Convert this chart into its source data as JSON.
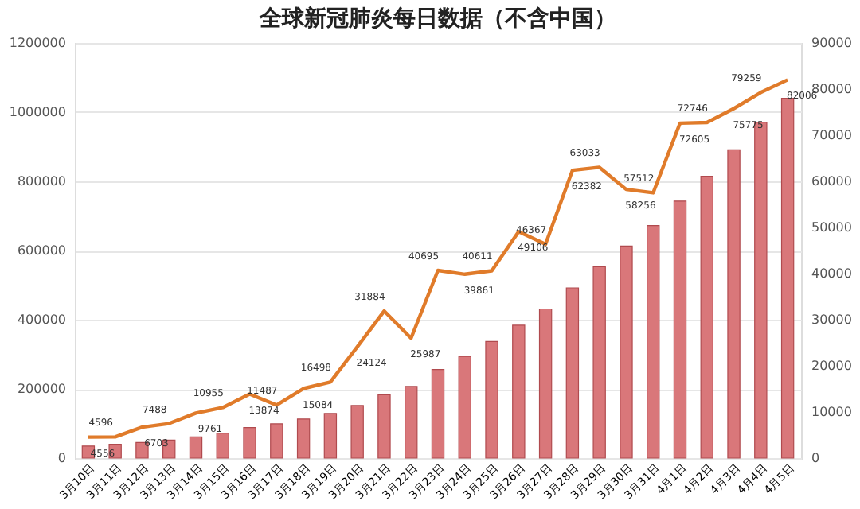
{
  "chart_data": {
    "type": "bar",
    "title": "全球新冠肺炎每日数据（不含中国）",
    "categories": [
      "3月10日",
      "3月11日",
      "3月12日",
      "3月13日",
      "3月14日",
      "3月15日",
      "3月16日",
      "3月17日",
      "3月18日",
      "3月19日",
      "3月20日",
      "3月21日",
      "3月22日",
      "3月23日",
      "3月24日",
      "3月25日",
      "3月26日",
      "3月27日",
      "3月28日",
      "3月29日",
      "3月30日",
      "3月31日",
      "4月1日",
      "4月2日",
      "4月3日",
      "4月4日",
      "4月5日"
    ],
    "series": [
      {
        "color": "#d9777a",
        "values": [
          35000,
          40000,
          45000,
          52000,
          61000,
          72000,
          88000,
          99000,
          113000,
          129000,
          152000,
          183000,
          207000,
          256000,
          294000,
          337000,
          384000,
          431000,
          492000,
          553000,
          613000,
          672000,
          743000,
          815000,
          891000,
          971000,
          1040000
        ]
      },
      {
        "type": "line",
        "axis": "y2",
        "color": "#e07b2a",
        "values": [
          4556,
          4596,
          6703,
          7488,
          9761,
          10955,
          13874,
          11487,
          15084,
          16498,
          24124,
          31884,
          25987,
          40695,
          39861,
          40611,
          49106,
          46367,
          62382,
          63033,
          58256,
          57512,
          72605,
          72746,
          75775,
          79259,
          82006
        ],
        "value_labels": [
          "4556",
          "4596",
          "6703",
          "7488",
          "9761",
          "10955",
          "13874",
          "11487",
          "15084",
          "16498",
          "24124",
          "31884",
          "25987",
          "40695",
          "39861",
          "40611",
          "49106",
          "46367",
          "62382",
          "63033",
          "58256",
          "57512",
          "72605",
          "72746",
          "75775",
          "79259",
          "82006"
        ]
      }
    ],
    "ylim": [
      0,
      1200000
    ],
    "yticks": [
      0,
      200000,
      400000,
      600000,
      800000,
      1000000,
      1200000
    ],
    "y2lim": [
      0,
      90000
    ],
    "y2ticks": [
      0,
      10000,
      20000,
      30000,
      40000,
      50000,
      60000,
      70000,
      80000,
      90000
    ],
    "grid": "y",
    "marker": "none",
    "line_style": "solid"
  }
}
